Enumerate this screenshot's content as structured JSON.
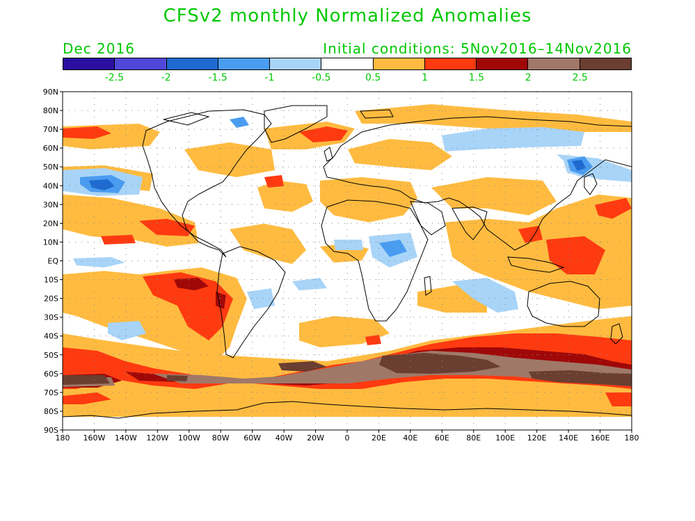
{
  "header": {
    "title": "CFSv2 monthly Normalized Anomalies",
    "month": "Dec 2016",
    "initial_conditions": "Initial conditions: 5Nov2016–14Nov2016"
  },
  "colorbar": {
    "colors": [
      "#2a0fa0",
      "#5048d8",
      "#1e6ad0",
      "#4a9cf0",
      "#a8d4f8",
      "#ffffff",
      "#ffbb40",
      "#ff3a10",
      "#a00808",
      "#a07868",
      "#6a3e30"
    ],
    "labels": [
      "-2.5",
      "-2",
      "-1.5",
      "-1",
      "-0.5",
      "0.5",
      "1",
      "1.5",
      "2",
      "2.5"
    ]
  },
  "axes": {
    "lat_labels": [
      "90N",
      "80N",
      "70N",
      "60N",
      "50N",
      "40N",
      "30N",
      "20N",
      "10N",
      "EQ",
      "10S",
      "20S",
      "30S",
      "40S",
      "50S",
      "60S",
      "70S",
      "80S",
      "90S"
    ],
    "lon_labels": [
      "180",
      "160W",
      "140W",
      "120W",
      "100W",
      "80W",
      "60W",
      "40W",
      "20W",
      "0",
      "20E",
      "40E",
      "60E",
      "80E",
      "100E",
      "120E",
      "140E",
      "160E",
      "180"
    ]
  }
}
